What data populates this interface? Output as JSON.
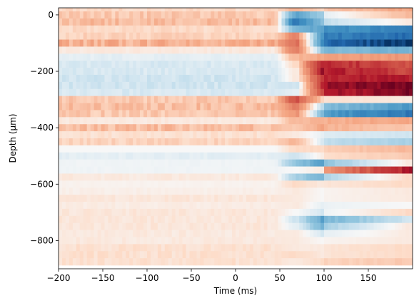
{
  "chart_data": {
    "type": "heatmap",
    "title": "",
    "xlabel": "Time (ms)",
    "ylabel": "Depth (μm)",
    "xlim": [
      -200,
      200
    ],
    "ylim": [
      -900,
      25
    ],
    "x_ticks": [
      -200,
      -150,
      -100,
      -50,
      0,
      50,
      100,
      150
    ],
    "x_tick_labels": [
      "−200",
      "−150",
      "−100",
      "−50",
      "0",
      "50",
      "100",
      "150"
    ],
    "y_ticks": [
      0,
      -200,
      -400,
      -600,
      -800
    ],
    "y_tick_labels": [
      "0",
      "−200",
      "−400",
      "−600",
      "−800"
    ],
    "grid": false,
    "colormap": "RdBu_r",
    "colors": {
      "negative": "#053061",
      "zero": "#f7f7f7",
      "positive": "#67001f",
      "frame": "#000000"
    },
    "onset_ms": 45,
    "time_step_ms": 4,
    "row_depths_um": [
      25,
      0,
      -25,
      -50,
      -75,
      -100,
      -125,
      -150,
      -175,
      -200,
      -225,
      -250,
      -275,
      -300,
      -325,
      -350,
      -375,
      -400,
      -425,
      -450,
      -475,
      -500,
      -525,
      -550,
      -575,
      -600,
      -625,
      -650,
      -675,
      -700,
      -725,
      -750,
      -775,
      -800,
      -825,
      -850,
      -875
    ],
    "rows": [
      {
        "pre": 0.1,
        "early": 0.2,
        "mid": 0.1,
        "late": 0.25
      },
      {
        "pre": 0.15,
        "early": -0.4,
        "mid": -0.2,
        "late": 0.2
      },
      {
        "pre": 0.18,
        "early": -0.6,
        "mid": -0.25,
        "late": 0.05
      },
      {
        "pre": 0.1,
        "early": -0.3,
        "mid": -0.45,
        "late": -0.6
      },
      {
        "pre": 0.12,
        "early": 0.35,
        "mid": -0.55,
        "late": -0.7
      },
      {
        "pre": 0.22,
        "early": 0.45,
        "mid": -0.6,
        "late": -0.95
      },
      {
        "pre": 0.05,
        "early": 0.4,
        "mid": -0.3,
        "late": -0.35
      },
      {
        "pre": -0.05,
        "early": 0.2,
        "mid": 0.25,
        "late": 0.3
      },
      {
        "pre": -0.08,
        "early": 0.1,
        "mid": 0.8,
        "late": 0.55
      },
      {
        "pre": -0.08,
        "early": 0.05,
        "mid": 0.85,
        "late": 0.6
      },
      {
        "pre": -0.1,
        "early": 0.05,
        "mid": 0.7,
        "late": 0.75
      },
      {
        "pre": -0.1,
        "early": -0.1,
        "mid": 0.75,
        "late": 0.95
      },
      {
        "pre": -0.08,
        "early": -0.05,
        "mid": 0.65,
        "late": 0.9
      },
      {
        "pre": 0.15,
        "early": 0.55,
        "mid": 0.1,
        "late": 0.05
      },
      {
        "pre": 0.18,
        "early": 0.4,
        "mid": -0.2,
        "late": -0.45
      },
      {
        "pre": 0.15,
        "early": 0.3,
        "mid": -0.35,
        "late": -0.65
      },
      {
        "pre": 0.05,
        "early": 0.2,
        "mid": 0.2,
        "late": 0.25
      },
      {
        "pre": 0.18,
        "early": 0.15,
        "mid": 0.25,
        "late": 0.15
      },
      {
        "pre": 0.08,
        "early": 0.05,
        "mid": -0.05,
        "late": -0.1
      },
      {
        "pre": 0.12,
        "early": 0.2,
        "mid": -0.1,
        "late": -0.2
      },
      {
        "pre": 0.0,
        "early": 0.1,
        "mid": 0.1,
        "late": 0.2
      },
      {
        "pre": -0.05,
        "early": -0.1,
        "mid": 0.05,
        "late": 0.15
      },
      {
        "pre": -0.02,
        "early": -0.25,
        "mid": -0.45,
        "late": 0.05
      },
      {
        "pre": -0.02,
        "early": 0.0,
        "mid": 0.05,
        "late": 0.75
      },
      {
        "pre": 0.05,
        "early": -0.2,
        "mid": -0.35,
        "late": 0.1
      },
      {
        "pre": 0.02,
        "early": 0.1,
        "mid": 0.05,
        "late": 0.1
      },
      {
        "pre": 0.03,
        "early": 0.05,
        "mid": 0.0,
        "late": 0.05
      },
      {
        "pre": 0.06,
        "early": 0.05,
        "mid": 0.0,
        "late": 0.05
      },
      {
        "pre": 0.04,
        "early": 0.05,
        "mid": -0.05,
        "late": 0.0
      },
      {
        "pre": 0.06,
        "early": 0.0,
        "mid": -0.1,
        "late": 0.1
      },
      {
        "pre": 0.06,
        "early": -0.1,
        "mid": -0.45,
        "late": -0.1
      },
      {
        "pre": 0.06,
        "early": -0.05,
        "mid": -0.35,
        "late": 0.05
      },
      {
        "pre": 0.05,
        "early": 0.05,
        "mid": -0.1,
        "late": 0.05
      },
      {
        "pre": 0.05,
        "early": 0.05,
        "mid": 0.0,
        "late": 0.05
      },
      {
        "pre": 0.08,
        "early": 0.05,
        "mid": 0.05,
        "late": 0.1
      },
      {
        "pre": 0.08,
        "early": 0.1,
        "mid": 0.05,
        "late": 0.1
      },
      {
        "pre": 0.08,
        "early": 0.05,
        "mid": 0.1,
        "late": 0.15
      }
    ]
  }
}
